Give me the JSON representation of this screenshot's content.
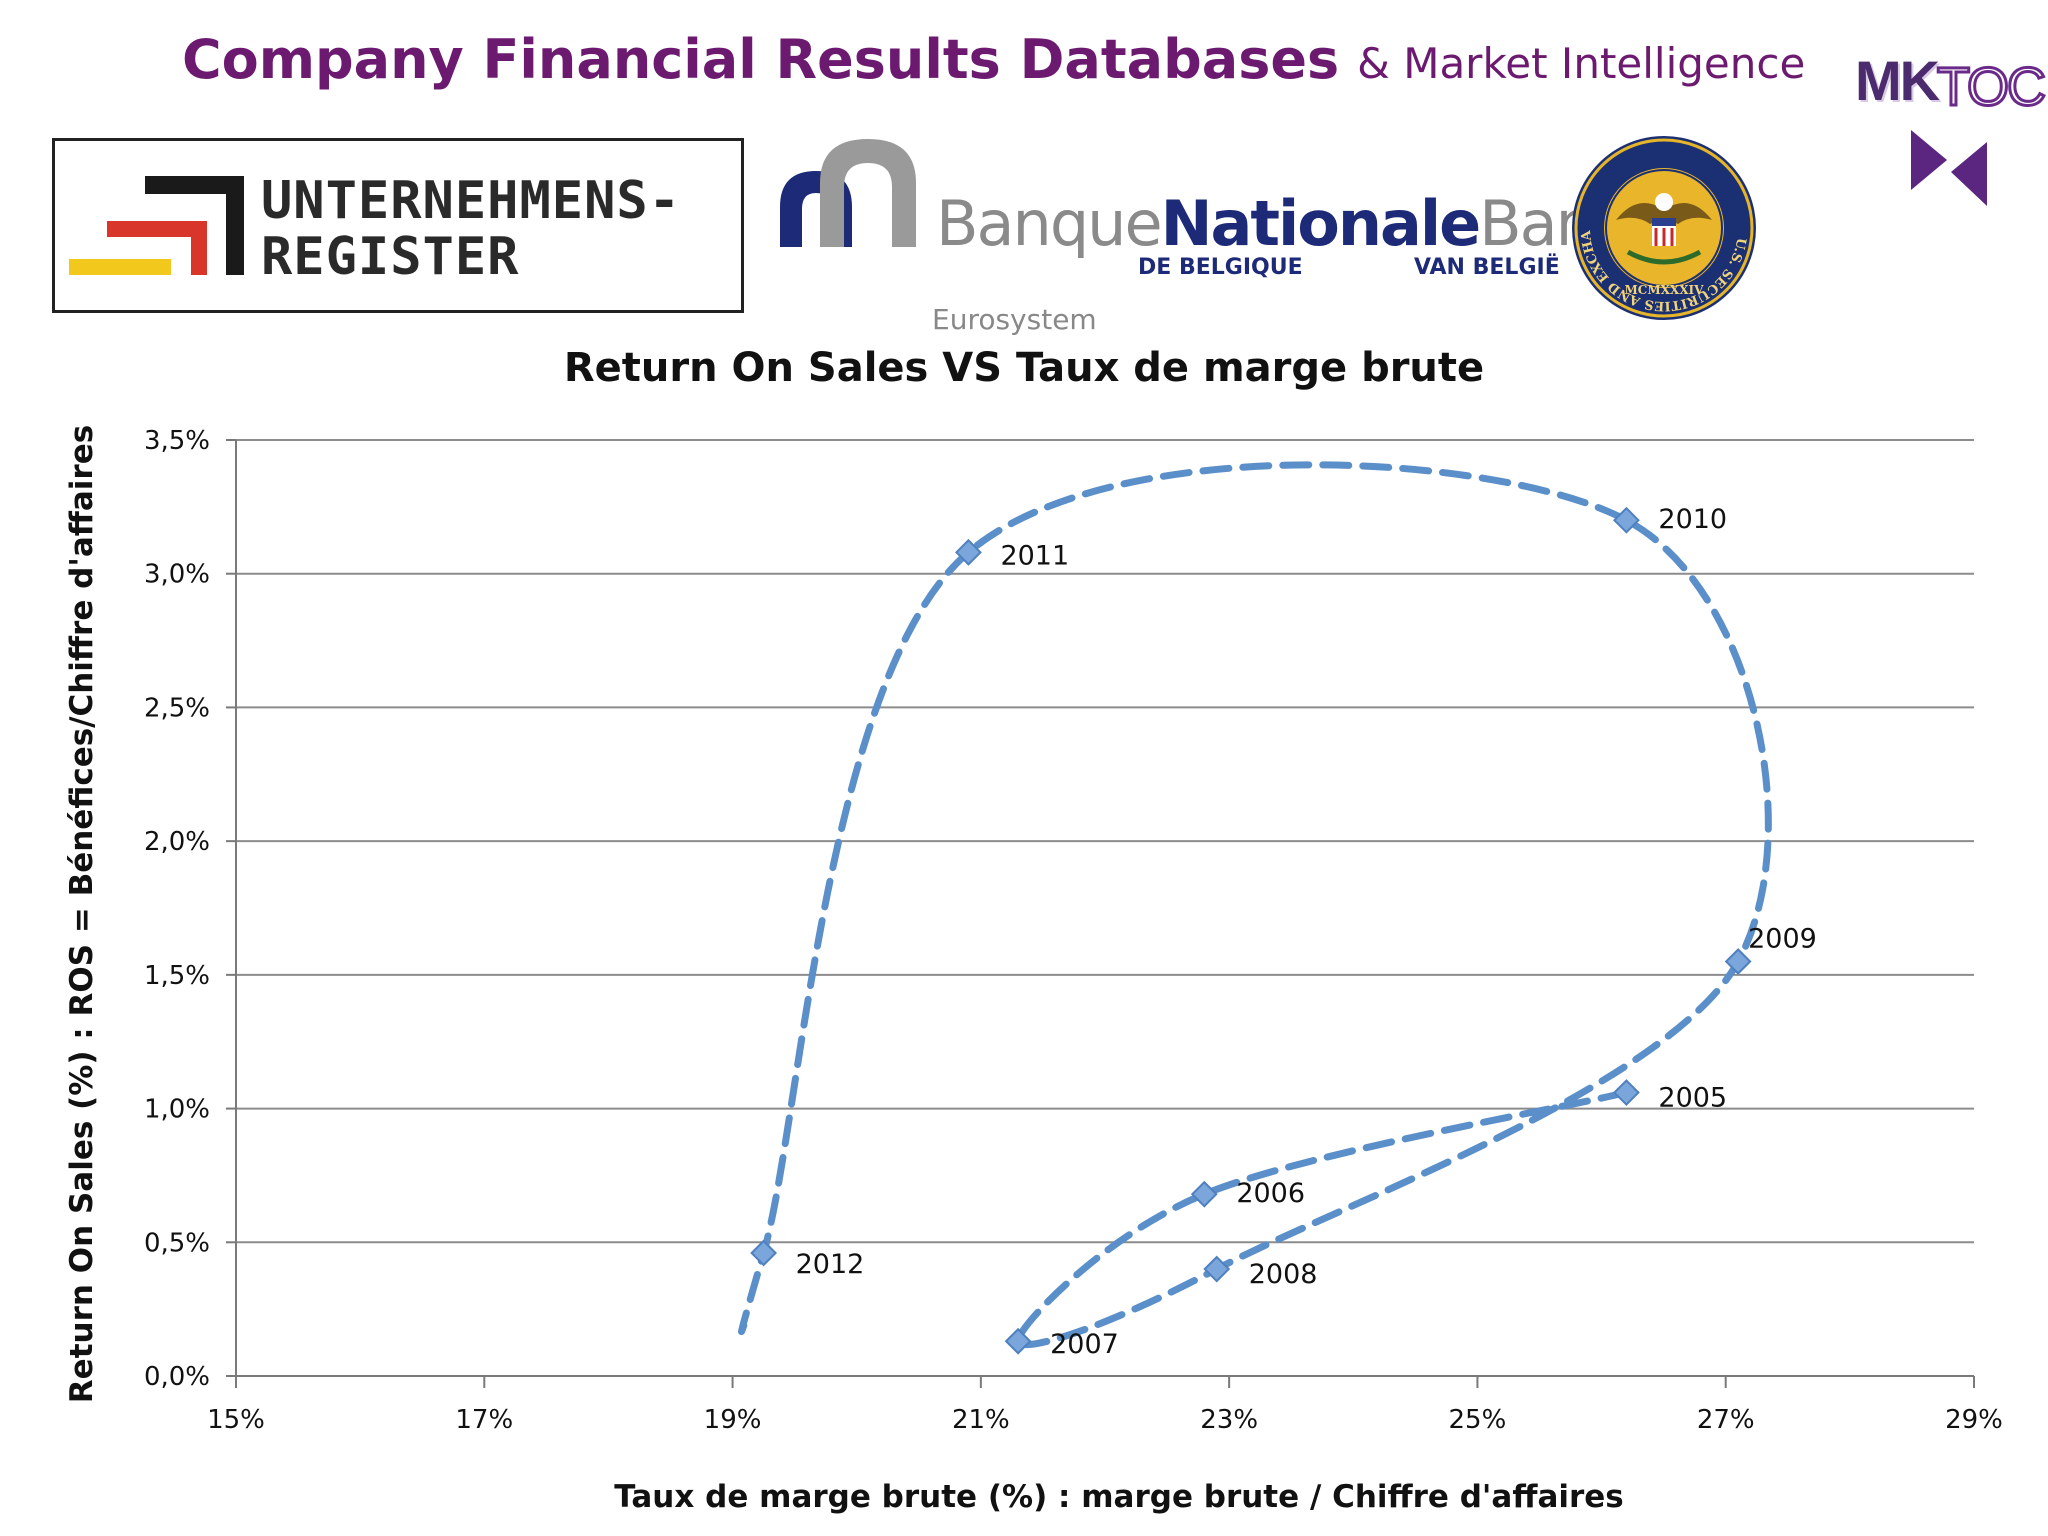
{
  "header": {
    "title_main": "Company Financial Results Databases",
    "title_sub": "& Market Intelligence"
  },
  "logos": {
    "unternehmensregister": {
      "line1": "UNTERNEHMENS-",
      "line2": "REGISTER"
    },
    "bnb": {
      "word_banque": "Banque",
      "word_nationale": "Nationale",
      "word_bank": "Bank",
      "de_belgique": "DE BELGIQUE",
      "van_belgie": "VAN BELGIË",
      "eurosystem": "Eurosystem"
    },
    "sec_seal": {
      "ring_text": "U.S. SECURITIES AND EXCHANGE COMMISSION",
      "year_text": "MCMXXXIV"
    },
    "mktoc": {
      "mk": "MK",
      "toc": "TOC"
    }
  },
  "colors": {
    "title_purple": "#6b1a6f",
    "series_blue": "#5b8fc9",
    "marker_blue": "#7aa6db",
    "grid": "#8c8c8c",
    "mktoc_purple": "#5a2680"
  },
  "chart_data": {
    "type": "scatter",
    "title": "Return On Sales VS Taux de marge brute",
    "xlabel": "Taux de marge brute (%) : marge brute / Chiffre d'affaires",
    "ylabel": "Return On Sales (%) : ROS = Bénéfices/Chiffre d'affaires",
    "xlim": [
      15,
      29
    ],
    "ylim": [
      0,
      3.5
    ],
    "x_ticks": [
      15,
      17,
      19,
      21,
      23,
      25,
      27,
      29
    ],
    "x_tick_labels": [
      "15%",
      "17%",
      "19%",
      "21%",
      "23%",
      "25%",
      "27%",
      "29%"
    ],
    "y_ticks": [
      0,
      0.5,
      1.0,
      1.5,
      2.0,
      2.5,
      3.0,
      3.5
    ],
    "y_tick_labels": [
      "0,0%",
      "0,5%",
      "1,0%",
      "1,5%",
      "2,0%",
      "2,5%",
      "3,0%",
      "3,5%"
    ],
    "grid": "horizontal",
    "line_style": "dashed-smoothed",
    "series": [
      {
        "points": [
          {
            "label": "2005",
            "x": 26.2,
            "y": 1.06
          },
          {
            "label": "2006",
            "x": 22.8,
            "y": 0.68
          },
          {
            "label": "2007",
            "x": 21.3,
            "y": 0.13
          },
          {
            "label": "2008",
            "x": 22.9,
            "y": 0.4
          },
          {
            "label": "2009",
            "x": 27.1,
            "y": 1.55
          },
          {
            "label": "2010",
            "x": 26.2,
            "y": 3.2
          },
          {
            "label": "2011",
            "x": 20.9,
            "y": 3.08
          },
          {
            "label": "2012",
            "x": 19.25,
            "y": 0.46
          }
        ],
        "tail_end": {
          "x": 19.1,
          "y": 0.2
        }
      }
    ]
  }
}
